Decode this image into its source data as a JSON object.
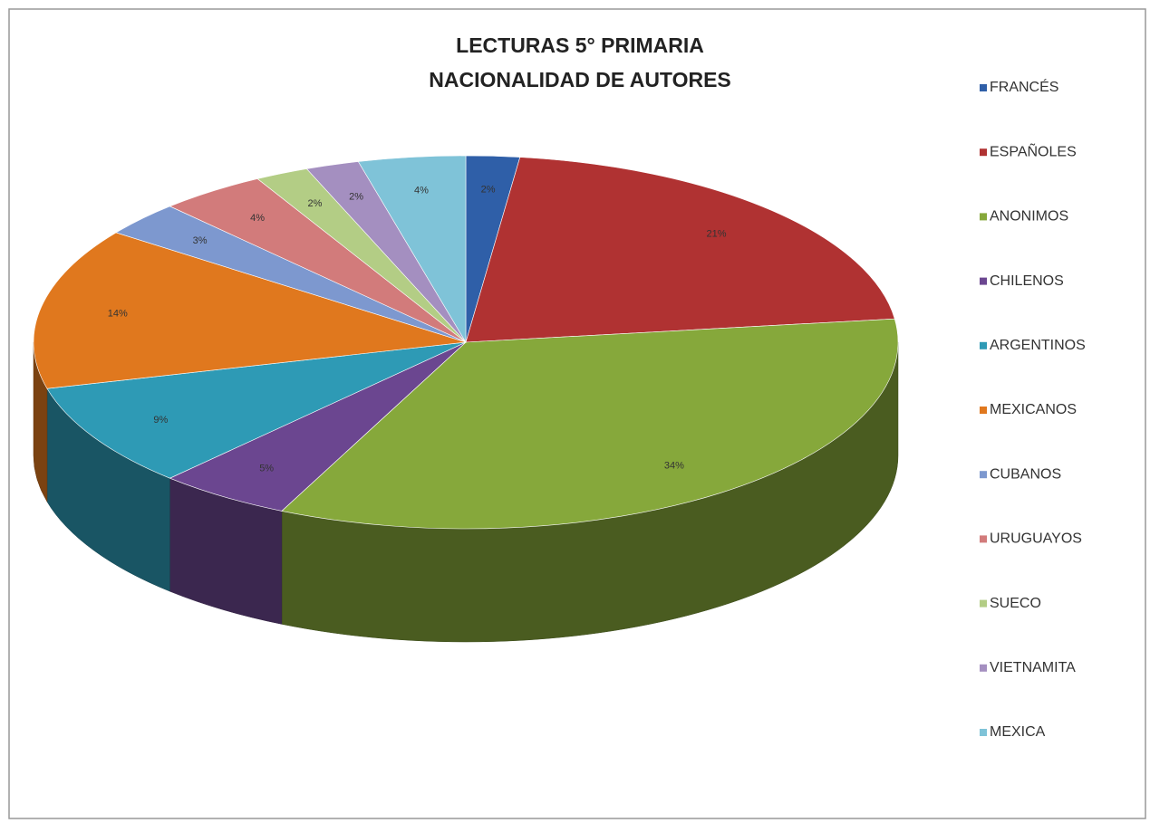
{
  "chart_data": {
    "type": "pie",
    "title": [
      "LECTURAS  5° PRIMARIA",
      "NACIONALIDAD DE AUTORES"
    ],
    "categories": [
      "FRANCÉS",
      "ESPAÑOLES",
      "ANONIMOS",
      "CHILENOS",
      "ARGENTINOS",
      "MEXICANOS",
      "CUBANOS",
      "URUGUAYOS",
      "SUECO",
      "VIETNAMITA",
      "MEXICA"
    ],
    "values": [
      2,
      21,
      34,
      5,
      9,
      14,
      3,
      4,
      2,
      2,
      4
    ],
    "value_labels": [
      "2%",
      "21%",
      "34%",
      "5%",
      "9%",
      "14%",
      "3%",
      "4%",
      "2%",
      "2%",
      "4%"
    ],
    "colors": [
      "#2f5fa8",
      "#b03232",
      "#86a83b",
      "#6b4690",
      "#2e9ab5",
      "#e0781e",
      "#7d98cf",
      "#d27b7b",
      "#b3cd85",
      "#a48fc0",
      "#7fc3d8"
    ],
    "legend": "right"
  }
}
